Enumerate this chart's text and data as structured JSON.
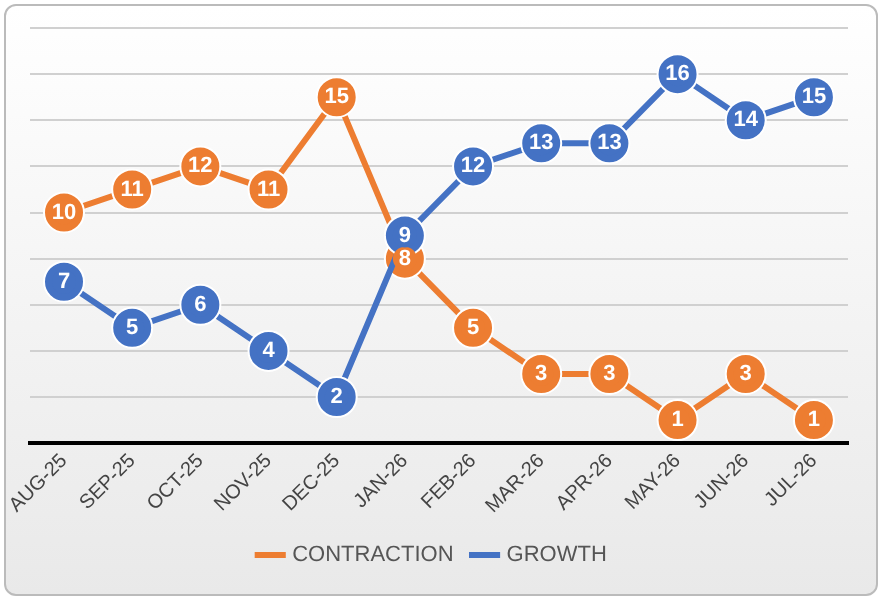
{
  "chart_data": {
    "type": "line",
    "categories": [
      "AUG-25",
      "SEP-25",
      "OCT-25",
      "NOV-25",
      "DEC-25",
      "JAN-26",
      "FEB-26",
      "MAR-26",
      "APR-26",
      "MAY-26",
      "JUN-26",
      "JUL-26"
    ],
    "series": [
      {
        "name": "CONTRACTION",
        "color": "#ed7d31",
        "values": [
          10,
          11,
          12,
          11,
          15,
          8,
          5,
          3,
          3,
          1,
          3,
          1
        ]
      },
      {
        "name": "GROWTH",
        "color": "#4472c4",
        "values": [
          7,
          5,
          6,
          4,
          2,
          9,
          12,
          13,
          13,
          16,
          14,
          15
        ]
      }
    ],
    "ylim": [
      0,
      18
    ],
    "yticks": [
      {
        "value": 0,
        "label": null
      },
      {
        "value": 2,
        "label": null
      },
      {
        "value": 4,
        "label": null
      },
      {
        "value": 6,
        "label": null
      },
      {
        "value": 8,
        "label": null
      },
      {
        "value": 10,
        "label": null
      },
      {
        "value": 12,
        "label": null
      },
      {
        "value": 14,
        "label": null
      },
      {
        "value": 16,
        "label": null
      },
      {
        "value": 18,
        "label": null
      }
    ],
    "tick_labels": "x",
    "grid": "y",
    "legend": "bottom",
    "marker": "circle",
    "line_style": "solid",
    "data_labels": true
  }
}
